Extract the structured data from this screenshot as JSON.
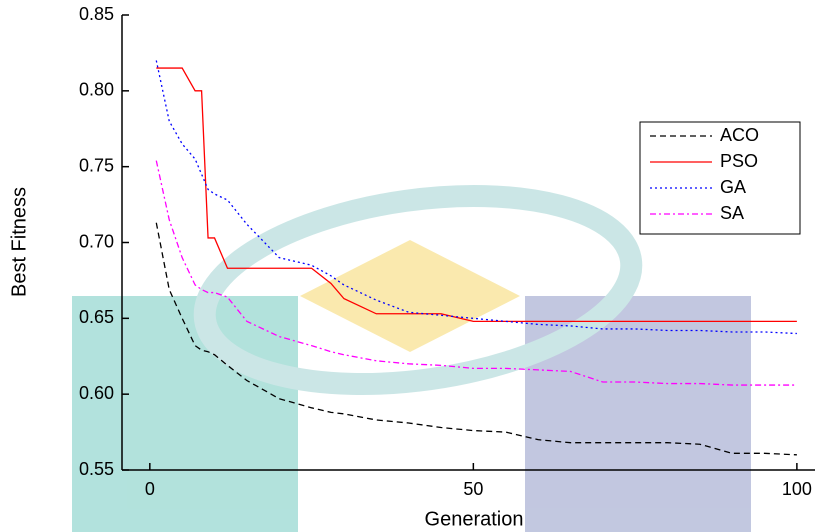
{
  "chart_data": {
    "type": "line",
    "x_label": "Generation",
    "y_label": "Best Fitness",
    "x": [
      1,
      3,
      5,
      7,
      8,
      9,
      10,
      12,
      15,
      20,
      25,
      28,
      30,
      35,
      40,
      45,
      50,
      55,
      60,
      65,
      70,
      75,
      80,
      85,
      90,
      95,
      100
    ],
    "series": [
      {
        "name": "ACO",
        "color": "#000000",
        "dash": "6,4",
        "values": [
          0.713,
          0.669,
          0.65,
          0.632,
          0.629,
          0.628,
          0.626,
          0.619,
          0.609,
          0.597,
          0.591,
          0.588,
          0.587,
          0.583,
          0.581,
          0.578,
          0.576,
          0.575,
          0.57,
          0.568,
          0.568,
          0.568,
          0.568,
          0.567,
          0.561,
          0.561,
          0.56
        ]
      },
      {
        "name": "PSO",
        "color": "#ff0000",
        "dash": "none",
        "values": [
          0.815,
          0.815,
          0.815,
          0.8,
          0.8,
          0.703,
          0.703,
          0.683,
          0.683,
          0.683,
          0.683,
          0.673,
          0.663,
          0.653,
          0.653,
          0.653,
          0.648,
          0.648,
          0.648,
          0.648,
          0.648,
          0.648,
          0.648,
          0.648,
          0.648,
          0.648,
          0.648
        ]
      },
      {
        "name": "GA",
        "color": "#0000ff",
        "dash": "2,3",
        "values": [
          0.82,
          0.78,
          0.765,
          0.755,
          0.745,
          0.735,
          0.732,
          0.728,
          0.712,
          0.69,
          0.685,
          0.678,
          0.672,
          0.662,
          0.654,
          0.652,
          0.65,
          0.648,
          0.646,
          0.645,
          0.643,
          0.643,
          0.642,
          0.642,
          0.641,
          0.641,
          0.64
        ]
      },
      {
        "name": "SA",
        "color": "#ff00ff",
        "dash": "6,3,2,3",
        "values": [
          0.754,
          0.715,
          0.69,
          0.672,
          0.669,
          0.667,
          0.667,
          0.664,
          0.648,
          0.638,
          0.632,
          0.628,
          0.626,
          0.622,
          0.62,
          0.619,
          0.617,
          0.617,
          0.616,
          0.615,
          0.608,
          0.608,
          0.607,
          0.607,
          0.606,
          0.606,
          0.606
        ]
      }
    ],
    "xlim": [
      -4.3,
      102.8
    ],
    "ylim": [
      0.55,
      0.85
    ],
    "xticks": [
      0,
      50,
      100
    ],
    "yticks": [
      {
        "value": 0.55,
        "label": "0.55"
      },
      {
        "value": 0.6,
        "label": "0.60"
      },
      {
        "value": 0.65,
        "label": "0.65"
      },
      {
        "value": 0.7,
        "label": "0.70"
      },
      {
        "value": 0.75,
        "label": "0.75"
      },
      {
        "value": 0.8,
        "label": "0.80"
      },
      {
        "value": 0.85,
        "label": "0.85"
      }
    ],
    "legend": "upper right",
    "grid": false
  }
}
